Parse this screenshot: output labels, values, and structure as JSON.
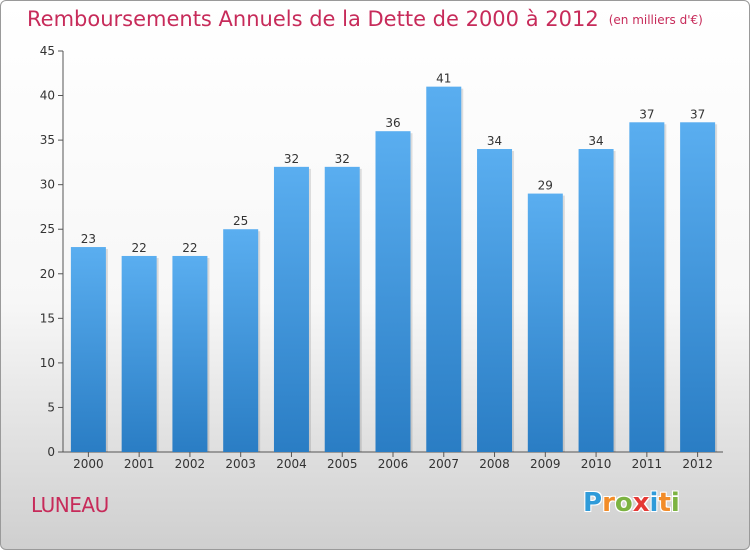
{
  "title": "Remboursements Annuels de la Dette de 2000 à 2012",
  "unit": "(en milliers d'€)",
  "place": "LUNEAU",
  "logo": {
    "letters": [
      "P",
      "r",
      "o",
      "x",
      "i",
      "t",
      "i"
    ],
    "colors": [
      "#2f9bd9",
      "#f28c28",
      "#7cb342",
      "#e53935",
      "#2f9bd9",
      "#f28c28",
      "#7cb342"
    ]
  },
  "colors": {
    "bar_top": "#5aaef0",
    "bar_bottom": "#2a7dc4",
    "title": "#c72b5a"
  },
  "chart_data": {
    "type": "bar",
    "categories": [
      "2000",
      "2001",
      "2002",
      "2003",
      "2004",
      "2005",
      "2006",
      "2007",
      "2008",
      "2009",
      "2010",
      "2011",
      "2012"
    ],
    "values": [
      23,
      22,
      22,
      25,
      32,
      32,
      36,
      41,
      34,
      29,
      34,
      37,
      37
    ],
    "ylim": [
      0,
      45
    ],
    "yticks": [
      0,
      5,
      10,
      15,
      20,
      25,
      30,
      35,
      40,
      45
    ],
    "grid": false,
    "data_labels": true
  }
}
